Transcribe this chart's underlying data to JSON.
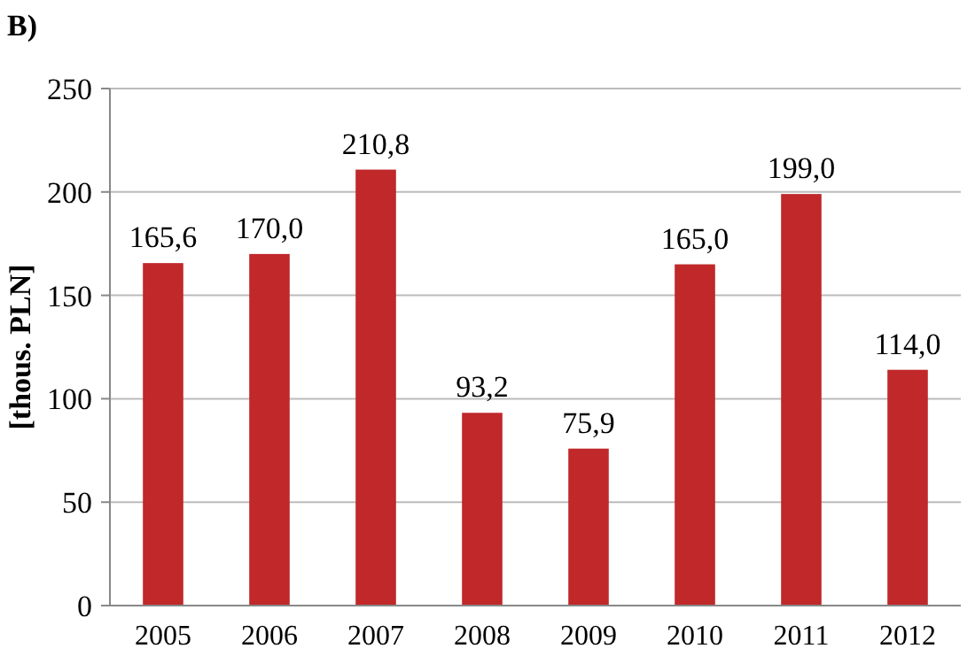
{
  "chart_data": {
    "type": "bar",
    "title": "B)",
    "ylabel": "[thous. PLN]",
    "categories": [
      "2005",
      "2006",
      "2007",
      "2008",
      "2009",
      "2010",
      "2011",
      "2012"
    ],
    "values": [
      165.6,
      170.0,
      210.8,
      93.2,
      75.9,
      165.0,
      199.0,
      114.0
    ],
    "value_labels": [
      "165,6",
      "170,0",
      "210,8",
      "93,2",
      "75,9",
      "165,0",
      "199,0",
      "114,0"
    ],
    "color": "#c0282a",
    "ylim": [
      0,
      250
    ],
    "yticks": [
      0,
      50,
      100,
      150,
      200,
      250
    ],
    "grid": "y"
  }
}
